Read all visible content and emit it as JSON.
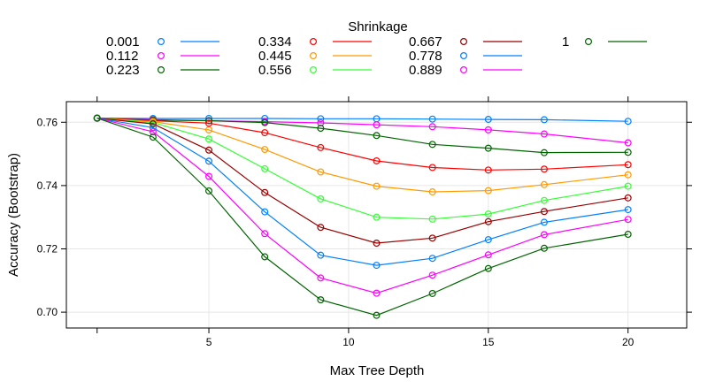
{
  "chart_data": {
    "type": "line",
    "title": "",
    "legend_title": "Shrinkage",
    "legend_position": "top",
    "xlabel": "Max Tree Depth",
    "ylabel": "Accuracy (Bootstrap)",
    "xlim": [
      -0.1,
      22.1
    ],
    "ylim": [
      0.695,
      0.7665
    ],
    "x_ticks": [
      5,
      10,
      15,
      20
    ],
    "y_ticks": [
      0.7,
      0.72,
      0.74,
      0.76
    ],
    "y_tick_labels": [
      "0.70",
      "0.72",
      "0.74",
      "0.76"
    ],
    "grid": true,
    "x": [
      1,
      3,
      5,
      7,
      9,
      11,
      13,
      15,
      17,
      20
    ],
    "series": [
      {
        "name": "0.001",
        "color": "#0080ff",
        "values": [
          0.7613,
          0.7612,
          0.7612,
          0.7612,
          0.7611,
          0.7611,
          0.761,
          0.7609,
          0.7608,
          0.7603
        ]
      },
      {
        "name": "0.112",
        "color": "#ff00ff",
        "values": [
          0.7613,
          0.7608,
          0.7605,
          0.7602,
          0.7598,
          0.7592,
          0.7586,
          0.7576,
          0.7563,
          0.7535
        ]
      },
      {
        "name": "0.223",
        "color": "#006400",
        "values": [
          0.7613,
          0.7607,
          0.7605,
          0.7599,
          0.7581,
          0.7558,
          0.753,
          0.7518,
          0.7504,
          0.7505
        ]
      },
      {
        "name": "0.334",
        "color": "#ff0000",
        "values": [
          0.7613,
          0.7605,
          0.7597,
          0.7567,
          0.752,
          0.7478,
          0.7457,
          0.7449,
          0.7452,
          0.7466
        ]
      },
      {
        "name": "0.445",
        "color": "#ff9900",
        "values": [
          0.7613,
          0.7602,
          0.7576,
          0.7514,
          0.7443,
          0.7398,
          0.738,
          0.7384,
          0.7403,
          0.7434
        ]
      },
      {
        "name": "0.556",
        "color": "#33ff33",
        "values": [
          0.7613,
          0.7599,
          0.7547,
          0.7453,
          0.7358,
          0.73,
          0.7294,
          0.731,
          0.7353,
          0.7398
        ]
      },
      {
        "name": "0.667",
        "color": "#990000",
        "values": [
          0.7613,
          0.7595,
          0.7512,
          0.7378,
          0.7268,
          0.7218,
          0.7234,
          0.7286,
          0.7318,
          0.7361
        ]
      },
      {
        "name": "0.778",
        "color": "#0080ff",
        "values": [
          0.7613,
          0.7583,
          0.7477,
          0.7317,
          0.718,
          0.7148,
          0.717,
          0.7229,
          0.7284,
          0.7324
        ]
      },
      {
        "name": "0.889",
        "color": "#ff00ff",
        "values": [
          0.7613,
          0.757,
          0.7429,
          0.7248,
          0.7108,
          0.706,
          0.7117,
          0.7181,
          0.7245,
          0.7293
        ]
      },
      {
        "name": "1",
        "color": "#006400",
        "values": [
          0.7613,
          0.7553,
          0.7383,
          0.7175,
          0.7039,
          0.699,
          0.7059,
          0.7138,
          0.7202,
          0.7246
        ]
      }
    ]
  }
}
